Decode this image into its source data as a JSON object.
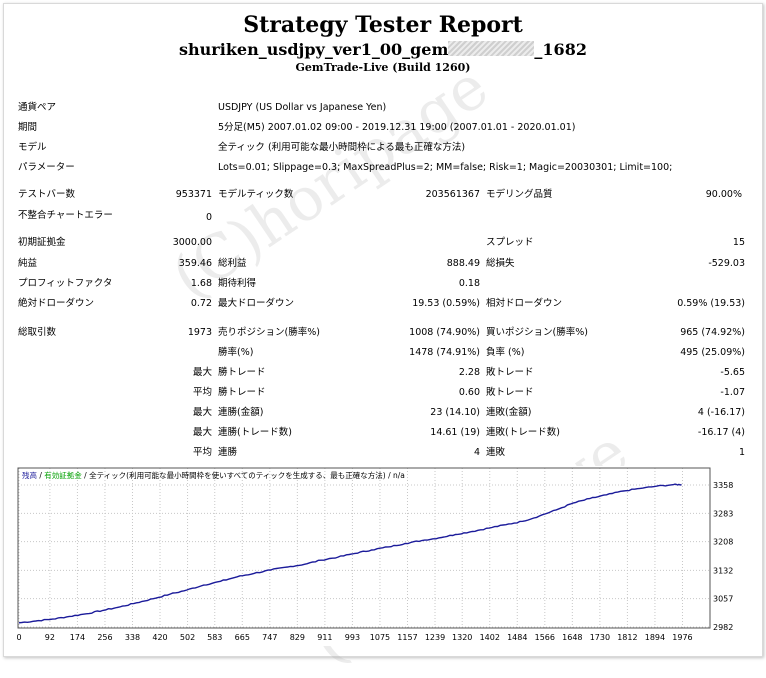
{
  "header": {
    "title": "Strategy Tester Report",
    "name_prefix": "shuriken_usdjpy_ver1_00_gem",
    "name_suffix": "_1682",
    "build": "GemTrade-Live (Build 1260)"
  },
  "watermark": "(C)horipage",
  "info": {
    "symbol_label": "通貨ペア",
    "symbol_value": "USDJPY (US Dollar vs Japanese Yen)",
    "period_label": "期間",
    "period_value": "5分足(M5) 2007.01.02 09:00 - 2019.12.31 19:00 (2007.01.01 - 2020.01.01)",
    "model_label": "モデル",
    "model_value": "全ティック (利用可能な最小時間枠による最も正確な方法)",
    "params_label": "パラメーター",
    "params_value": "Lots=0.01; Slippage=0.3; MaxSpreadPlus=2; MM=false; Risk=1; Magic=20030301; Limit=100;"
  },
  "stats": {
    "bars_label": "テストバー数",
    "bars_value": "953371",
    "ticks_label": "モデルティック数",
    "ticks_value": "203561367",
    "quality_label": "モデリング品質",
    "quality_value": "90.00%",
    "errors_label": "不整合チャートエラー",
    "errors_value": "0",
    "deposit_label": "初期証拠金",
    "deposit_value": "3000.00",
    "spread_label": "スプレッド",
    "spread_value": "15",
    "net_label": "純益",
    "net_value": "359.46",
    "gross_profit_label": "総利益",
    "gross_profit_value": "888.49",
    "gross_loss_label": "総損失",
    "gross_loss_value": "-529.03",
    "pf_label": "プロフィットファクタ",
    "pf_value": "1.68",
    "payoff_label": "期待利得",
    "payoff_value": "0.18",
    "abs_dd_label": "絶対ドローダウン",
    "abs_dd_value": "0.72",
    "max_dd_label": "最大ドローダウン",
    "max_dd_value": "19.53 (0.59%)",
    "rel_dd_label": "相対ドローダウン",
    "rel_dd_value": "0.59% (19.53)",
    "trades_label": "総取引数",
    "trades_value": "1973",
    "short_label": "売りポジション(勝率%)",
    "short_value": "1008 (74.90%)",
    "long_label": "買いポジション(勝率%)",
    "long_value": "965 (74.92%)",
    "winrate_label": "勝率(%)",
    "winrate_value": "1478 (74.91%)",
    "lossrate_label": "負率 (%)",
    "lossrate_value": "495 (25.09%)",
    "max_word": "最大",
    "avg_word": "平均",
    "largest_win_label": "勝トレード",
    "largest_win_value": "2.28",
    "largest_loss_label": "敗トレード",
    "largest_loss_value": "-5.65",
    "avg_win_label": "勝トレード",
    "avg_win_value": "0.60",
    "avg_loss_label": "敗トレード",
    "avg_loss_value": "-1.07",
    "cons_win_money_label": "連勝(金額)",
    "cons_win_money_value": "23 (14.10)",
    "cons_loss_money_label": "連敗(金額)",
    "cons_loss_money_value": "4 (-16.17)",
    "cons_profit_label": "連勝(トレード数)",
    "cons_profit_value": "14.61 (19)",
    "cons_lossamt_label": "連敗(トレード数)",
    "cons_lossamt_value": "-16.17 (4)",
    "avg_cons_win_label": "連勝",
    "avg_cons_win_value": "4",
    "avg_cons_loss_label": "連敗",
    "avg_cons_loss_value": "1"
  },
  "chart_data": {
    "type": "line",
    "legend": {
      "balance": "残高",
      "sep1": " / ",
      "margin": "有効証拠金",
      "sep2": " / ",
      "model": "全ティック(利用可能な最小時間枠を使いすべてのティックを生成する、最も正確な方法)",
      "sep3": " / ",
      "na": "n/a"
    },
    "colors": {
      "balance": "#1b1b9a",
      "margin": "#00a000",
      "grid": "#c8c8c8"
    },
    "xticks": [
      0,
      92,
      174,
      256,
      338,
      420,
      502,
      583,
      665,
      747,
      829,
      911,
      993,
      1075,
      1157,
      1239,
      1320,
      1402,
      1484,
      1566,
      1648,
      1730,
      1812,
      1894,
      1976
    ],
    "yticks": [
      2982,
      3057,
      3132,
      3208,
      3283,
      3358
    ],
    "xlim": [
      0,
      2055
    ],
    "ylim": [
      2982,
      3358
    ],
    "balance_points": [
      [
        0,
        2993
      ],
      [
        50,
        2998
      ],
      [
        100,
        3003
      ],
      [
        150,
        3010
      ],
      [
        200,
        3017
      ],
      [
        250,
        3026
      ],
      [
        300,
        3035
      ],
      [
        350,
        3046
      ],
      [
        400,
        3057
      ],
      [
        450,
        3069
      ],
      [
        500,
        3080
      ],
      [
        550,
        3093
      ],
      [
        600,
        3103
      ],
      [
        650,
        3115
      ],
      [
        700,
        3124
      ],
      [
        750,
        3133
      ],
      [
        800,
        3141
      ],
      [
        850,
        3148
      ],
      [
        900,
        3159
      ],
      [
        950,
        3167
      ],
      [
        1000,
        3177
      ],
      [
        1050,
        3186
      ],
      [
        1100,
        3194
      ],
      [
        1150,
        3203
      ],
      [
        1200,
        3211
      ],
      [
        1250,
        3218
      ],
      [
        1300,
        3227
      ],
      [
        1350,
        3235
      ],
      [
        1400,
        3244
      ],
      [
        1450,
        3253
      ],
      [
        1500,
        3262
      ],
      [
        1550,
        3276
      ],
      [
        1600,
        3292
      ],
      [
        1650,
        3310
      ],
      [
        1700,
        3322
      ],
      [
        1750,
        3332
      ],
      [
        1800,
        3342
      ],
      [
        1850,
        3349
      ],
      [
        1900,
        3355
      ],
      [
        1950,
        3359
      ],
      [
        1973,
        3359
      ]
    ]
  }
}
